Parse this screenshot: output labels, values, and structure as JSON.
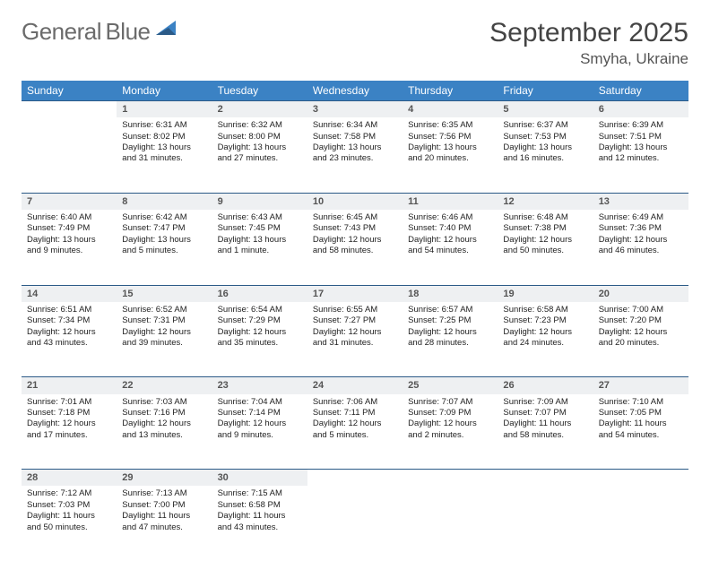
{
  "logo": {
    "text1": "General",
    "text2": "Blue"
  },
  "title": "September 2025",
  "location": "Smyha, Ukraine",
  "headers": [
    "Sunday",
    "Monday",
    "Tuesday",
    "Wednesday",
    "Thursday",
    "Friday",
    "Saturday"
  ],
  "colors": {
    "header_bg": "#3b82c4",
    "header_fg": "#ffffff",
    "daynum_bg": "#eef0f2",
    "row_border": "#2b5a87",
    "logo_blue": "#3b82c4",
    "logo_gray": "#6b6b6b"
  },
  "weeks": [
    [
      {
        "n": "",
        "s": "",
        "t": "",
        "d": ""
      },
      {
        "n": "1",
        "s": "Sunrise: 6:31 AM",
        "t": "Sunset: 8:02 PM",
        "d": "Daylight: 13 hours and 31 minutes."
      },
      {
        "n": "2",
        "s": "Sunrise: 6:32 AM",
        "t": "Sunset: 8:00 PM",
        "d": "Daylight: 13 hours and 27 minutes."
      },
      {
        "n": "3",
        "s": "Sunrise: 6:34 AM",
        "t": "Sunset: 7:58 PM",
        "d": "Daylight: 13 hours and 23 minutes."
      },
      {
        "n": "4",
        "s": "Sunrise: 6:35 AM",
        "t": "Sunset: 7:56 PM",
        "d": "Daylight: 13 hours and 20 minutes."
      },
      {
        "n": "5",
        "s": "Sunrise: 6:37 AM",
        "t": "Sunset: 7:53 PM",
        "d": "Daylight: 13 hours and 16 minutes."
      },
      {
        "n": "6",
        "s": "Sunrise: 6:39 AM",
        "t": "Sunset: 7:51 PM",
        "d": "Daylight: 13 hours and 12 minutes."
      }
    ],
    [
      {
        "n": "7",
        "s": "Sunrise: 6:40 AM",
        "t": "Sunset: 7:49 PM",
        "d": "Daylight: 13 hours and 9 minutes."
      },
      {
        "n": "8",
        "s": "Sunrise: 6:42 AM",
        "t": "Sunset: 7:47 PM",
        "d": "Daylight: 13 hours and 5 minutes."
      },
      {
        "n": "9",
        "s": "Sunrise: 6:43 AM",
        "t": "Sunset: 7:45 PM",
        "d": "Daylight: 13 hours and 1 minute."
      },
      {
        "n": "10",
        "s": "Sunrise: 6:45 AM",
        "t": "Sunset: 7:43 PM",
        "d": "Daylight: 12 hours and 58 minutes."
      },
      {
        "n": "11",
        "s": "Sunrise: 6:46 AM",
        "t": "Sunset: 7:40 PM",
        "d": "Daylight: 12 hours and 54 minutes."
      },
      {
        "n": "12",
        "s": "Sunrise: 6:48 AM",
        "t": "Sunset: 7:38 PM",
        "d": "Daylight: 12 hours and 50 minutes."
      },
      {
        "n": "13",
        "s": "Sunrise: 6:49 AM",
        "t": "Sunset: 7:36 PM",
        "d": "Daylight: 12 hours and 46 minutes."
      }
    ],
    [
      {
        "n": "14",
        "s": "Sunrise: 6:51 AM",
        "t": "Sunset: 7:34 PM",
        "d": "Daylight: 12 hours and 43 minutes."
      },
      {
        "n": "15",
        "s": "Sunrise: 6:52 AM",
        "t": "Sunset: 7:31 PM",
        "d": "Daylight: 12 hours and 39 minutes."
      },
      {
        "n": "16",
        "s": "Sunrise: 6:54 AM",
        "t": "Sunset: 7:29 PM",
        "d": "Daylight: 12 hours and 35 minutes."
      },
      {
        "n": "17",
        "s": "Sunrise: 6:55 AM",
        "t": "Sunset: 7:27 PM",
        "d": "Daylight: 12 hours and 31 minutes."
      },
      {
        "n": "18",
        "s": "Sunrise: 6:57 AM",
        "t": "Sunset: 7:25 PM",
        "d": "Daylight: 12 hours and 28 minutes."
      },
      {
        "n": "19",
        "s": "Sunrise: 6:58 AM",
        "t": "Sunset: 7:23 PM",
        "d": "Daylight: 12 hours and 24 minutes."
      },
      {
        "n": "20",
        "s": "Sunrise: 7:00 AM",
        "t": "Sunset: 7:20 PM",
        "d": "Daylight: 12 hours and 20 minutes."
      }
    ],
    [
      {
        "n": "21",
        "s": "Sunrise: 7:01 AM",
        "t": "Sunset: 7:18 PM",
        "d": "Daylight: 12 hours and 17 minutes."
      },
      {
        "n": "22",
        "s": "Sunrise: 7:03 AM",
        "t": "Sunset: 7:16 PM",
        "d": "Daylight: 12 hours and 13 minutes."
      },
      {
        "n": "23",
        "s": "Sunrise: 7:04 AM",
        "t": "Sunset: 7:14 PM",
        "d": "Daylight: 12 hours and 9 minutes."
      },
      {
        "n": "24",
        "s": "Sunrise: 7:06 AM",
        "t": "Sunset: 7:11 PM",
        "d": "Daylight: 12 hours and 5 minutes."
      },
      {
        "n": "25",
        "s": "Sunrise: 7:07 AM",
        "t": "Sunset: 7:09 PM",
        "d": "Daylight: 12 hours and 2 minutes."
      },
      {
        "n": "26",
        "s": "Sunrise: 7:09 AM",
        "t": "Sunset: 7:07 PM",
        "d": "Daylight: 11 hours and 58 minutes."
      },
      {
        "n": "27",
        "s": "Sunrise: 7:10 AM",
        "t": "Sunset: 7:05 PM",
        "d": "Daylight: 11 hours and 54 minutes."
      }
    ],
    [
      {
        "n": "28",
        "s": "Sunrise: 7:12 AM",
        "t": "Sunset: 7:03 PM",
        "d": "Daylight: 11 hours and 50 minutes."
      },
      {
        "n": "29",
        "s": "Sunrise: 7:13 AM",
        "t": "Sunset: 7:00 PM",
        "d": "Daylight: 11 hours and 47 minutes."
      },
      {
        "n": "30",
        "s": "Sunrise: 7:15 AM",
        "t": "Sunset: 6:58 PM",
        "d": "Daylight: 11 hours and 43 minutes."
      },
      {
        "n": "",
        "s": "",
        "t": "",
        "d": ""
      },
      {
        "n": "",
        "s": "",
        "t": "",
        "d": ""
      },
      {
        "n": "",
        "s": "",
        "t": "",
        "d": ""
      },
      {
        "n": "",
        "s": "",
        "t": "",
        "d": ""
      }
    ]
  ]
}
